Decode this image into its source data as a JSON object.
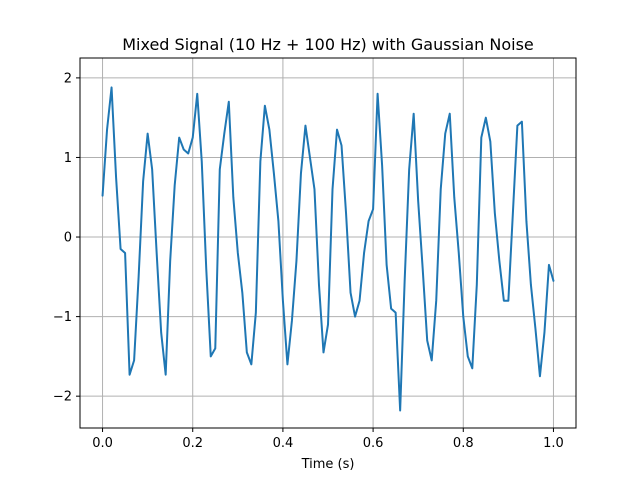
{
  "chart_data": {
    "type": "line",
    "title": "Mixed Signal (10 Hz + 100 Hz) with Gaussian Noise",
    "xlabel": "Time (s)",
    "ylabel": "",
    "xlim": [
      -0.05,
      1.05
    ],
    "ylim": [
      -2.4,
      2.25
    ],
    "xticks": [
      0.0,
      0.2,
      0.4,
      0.6,
      0.8,
      1.0
    ],
    "xtick_labels": [
      "0.0",
      "0.2",
      "0.4",
      "0.6",
      "0.8",
      "1.0"
    ],
    "yticks": [
      -2,
      -1,
      0,
      1,
      2
    ],
    "ytick_labels": [
      "−2",
      "−1",
      "0",
      "1",
      "2"
    ],
    "grid": true,
    "colors": {
      "line": "#1f77b4",
      "grid": "#b0b0b0",
      "axes": "#000000"
    },
    "series": [
      {
        "x": [
          0.0,
          0.01,
          0.02,
          0.03,
          0.04,
          0.05,
          0.06,
          0.07,
          0.08,
          0.09,
          0.1,
          0.11,
          0.12,
          0.13,
          0.14,
          0.15,
          0.16,
          0.17,
          0.18,
          0.19,
          0.2,
          0.21,
          0.22,
          0.23,
          0.24,
          0.25,
          0.26,
          0.27,
          0.28,
          0.29,
          0.3,
          0.31,
          0.32,
          0.33,
          0.34,
          0.35,
          0.36,
          0.37,
          0.38,
          0.39,
          0.4,
          0.41,
          0.42,
          0.43,
          0.44,
          0.45,
          0.46,
          0.47,
          0.48,
          0.49,
          0.5,
          0.51,
          0.52,
          0.53,
          0.54,
          0.55,
          0.56,
          0.57,
          0.58,
          0.59,
          0.6,
          0.61,
          0.62,
          0.63,
          0.64,
          0.65,
          0.66,
          0.67,
          0.68,
          0.69,
          0.7,
          0.71,
          0.72,
          0.73,
          0.74,
          0.75,
          0.76,
          0.77,
          0.78,
          0.79,
          0.8,
          0.81,
          0.82,
          0.83,
          0.84,
          0.85,
          0.86,
          0.87,
          0.88,
          0.89,
          0.9,
          0.91,
          0.92,
          0.93,
          0.94,
          0.95,
          0.96,
          0.97,
          0.98,
          0.99,
          1.0
        ],
        "y": [
          0.52,
          1.35,
          1.88,
          0.75,
          -0.15,
          -0.2,
          -1.73,
          -1.55,
          -0.5,
          0.7,
          1.3,
          0.85,
          -0.2,
          -1.2,
          -1.73,
          -0.3,
          0.65,
          1.25,
          1.1,
          1.05,
          1.25,
          1.8,
          0.95,
          -0.4,
          -1.5,
          -1.4,
          0.85,
          1.3,
          1.7,
          0.5,
          -0.2,
          -0.7,
          -1.45,
          -1.6,
          -0.95,
          0.95,
          1.65,
          1.35,
          0.8,
          0.2,
          -0.8,
          -1.6,
          -1.05,
          -0.3,
          0.8,
          1.4,
          1.0,
          0.6,
          -0.6,
          -1.45,
          -1.1,
          0.6,
          1.35,
          1.15,
          0.3,
          -0.7,
          -1.0,
          -0.8,
          -0.2,
          0.2,
          0.35,
          1.8,
          0.9,
          -0.35,
          -0.9,
          -0.95,
          -2.18,
          -0.55,
          0.85,
          1.55,
          0.45,
          -0.4,
          -1.3,
          -1.55,
          -0.8,
          0.6,
          1.3,
          1.55,
          0.5,
          -0.2,
          -1.0,
          -1.5,
          -1.65,
          -0.6,
          1.25,
          1.5,
          1.2,
          0.3,
          -0.3,
          -0.8,
          -0.8,
          0.3,
          1.4,
          1.45,
          0.2,
          -0.6,
          -1.15,
          -1.75,
          -1.2,
          -0.35,
          -0.55
        ]
      }
    ]
  }
}
